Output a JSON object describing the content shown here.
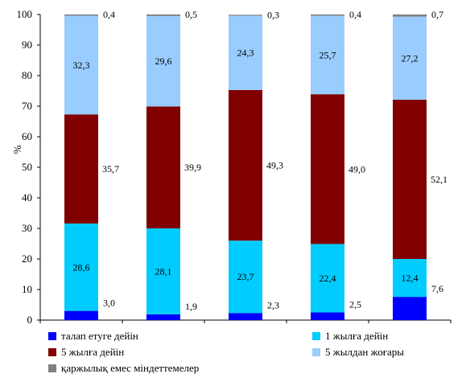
{
  "chart_data": {
    "type": "bar",
    "stacked": true,
    "categories": [
      "",
      "",
      "",
      "",
      ""
    ],
    "ylabel": "%",
    "ylim": [
      0,
      100
    ],
    "yticks": [
      0,
      10,
      20,
      30,
      40,
      50,
      60,
      70,
      80,
      90,
      100
    ],
    "grid": false,
    "legend_position": "bottom",
    "series": [
      {
        "name": "талап етуге дейін",
        "color": "#0000ff",
        "values": [
          3.0,
          1.9,
          2.3,
          2.5,
          7.6
        ],
        "labels": [
          "3,0",
          "1,9",
          "2,3",
          "2,5",
          "7,6"
        ]
      },
      {
        "name": "1 жылға дейін",
        "color": "#00ccff",
        "values": [
          28.6,
          28.1,
          23.7,
          22.4,
          12.4
        ],
        "labels": [
          "28,6",
          "28,1",
          "23,7",
          "22,4",
          "12,4"
        ]
      },
      {
        "name": "5 жылға дейін",
        "color": "#800000",
        "values": [
          35.7,
          39.9,
          49.3,
          49.0,
          52.1
        ],
        "labels": [
          "35,7",
          "39,9",
          "49,3",
          "49,0",
          "52,1"
        ]
      },
      {
        "name": "5 жылдан жоғары",
        "color": "#99ccff",
        "values": [
          32.3,
          29.6,
          24.3,
          25.7,
          27.2
        ],
        "labels": [
          "32,3",
          "29,6",
          "24,3",
          "25,7",
          "27,2"
        ]
      },
      {
        "name": "қаржылық емес міндеттемелер",
        "color": "#808080",
        "values": [
          0.4,
          0.5,
          0.3,
          0.4,
          0.7
        ],
        "labels": [
          "0,4",
          "0,5",
          "0,3",
          "0,4",
          "0,7"
        ]
      }
    ]
  }
}
